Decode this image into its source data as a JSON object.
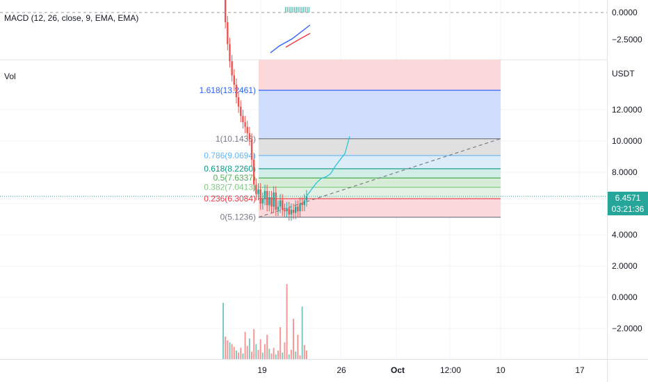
{
  "macd_panel": {
    "label": "MACD (12, 26, close, 9, EMA, EMA)",
    "ticks": [
      "0.0000",
      "−2.5000"
    ],
    "tick_values": [
      0,
      -2.5
    ]
  },
  "vol_panel": {
    "label": "Vol"
  },
  "price_axis": {
    "currency": "USDT",
    "ticks": [
      "12.0000",
      "10.0000",
      "8.0000",
      "6.0000",
      "4.0000",
      "2.0000",
      "0.0000",
      "−2.0000"
    ],
    "tick_values": [
      12,
      10,
      8,
      6,
      4,
      2,
      0,
      -2
    ]
  },
  "current_price": {
    "value": "6.4571",
    "countdown": "03:21:36",
    "color": "#26a69a"
  },
  "time_axis": {
    "ticks": [
      "19",
      "26",
      "Oct",
      "12:00",
      "10",
      "17"
    ]
  },
  "chart_data": {
    "type": "candlestick",
    "price_range": [
      -3,
      15
    ],
    "fibonacci": {
      "low": 5.1236,
      "high": 10.1433,
      "levels": [
        {
          "ratio": 1.618,
          "label": "1.618(13.2461)",
          "price": 13.2461,
          "color": "#2962ff",
          "text_color": "#2962ff",
          "fill": "#d1ddfc"
        },
        {
          "ratio": 1,
          "label": "1(10.1433)",
          "price": 10.1433,
          "color": "#787b86",
          "text_color": "#787b86",
          "fill": "#e0e0e0"
        },
        {
          "ratio": 0.786,
          "label": "0.786(9.0694)",
          "price": 9.0694,
          "color": "#64b5f6",
          "text_color": "#64b5f6",
          "fill": "#dcecf9"
        },
        {
          "ratio": 0.618,
          "label": "0.618(8.2260)",
          "price": 8.226,
          "color": "#089981",
          "text_color": "#089981",
          "fill": "#d2ece7"
        },
        {
          "ratio": 0.5,
          "label": "0.5(7.6337)",
          "price": 7.6337,
          "color": "#4caf50",
          "text_color": "#4caf50",
          "fill": "#d6ecd7"
        },
        {
          "ratio": 0.382,
          "label": "0.382(7.0413)",
          "price": 7.0413,
          "color": "#81c784",
          "text_color": "#81c784",
          "fill": "#e1f0e2"
        },
        {
          "ratio": 0.236,
          "label": "0.236(6.3084)",
          "price": 6.3084,
          "color": "#f23645",
          "text_color": "#f23645",
          "fill": "#fbd8da"
        },
        {
          "ratio": 0,
          "label": "0(5.1236)",
          "price": 5.1236,
          "color": "#787b86",
          "text_color": "#787b86",
          "fill": null
        }
      ]
    },
    "candles_price_path": [
      19.5,
      17.6,
      16.2,
      15.1,
      14.2,
      13.6,
      12.8,
      12.2,
      11.6,
      11.2,
      10.9,
      10.5,
      10.1,
      8.8,
      7.2,
      6.6,
      6.9,
      6.0,
      6.3,
      6.8,
      5.9,
      6.4,
      5.8,
      6.7,
      5.6,
      5.8,
      6.2,
      5.6,
      5.5,
      5.7,
      5.3,
      5.6,
      5.4,
      5.8,
      5.5,
      6.0,
      5.9,
      6.2,
      6.46
    ],
    "projection_path": [
      6.46,
      6.9,
      7.3,
      7.6,
      7.7,
      7.9,
      8.4,
      8.8,
      9.2,
      10.3
    ],
    "trend_line": {
      "from_price": 5.1236,
      "to_price": 10.15
    },
    "volume": [
      6.0,
      2.4,
      2.0,
      1.8,
      1.6,
      1.3,
      0.9,
      0.7,
      1.2,
      0.6,
      2.9,
      1.4,
      2.2,
      0.8,
      3.2,
      1.6,
      1.0,
      2.1,
      0.7,
      1.6,
      2.6,
      1.1,
      0.6,
      1.2,
      0.5,
      0.9,
      3.4,
      0.7,
      1.8,
      8.0,
      0.5,
      1.0,
      4.3,
      0.8,
      2.6,
      0.4,
      5.6,
      1.5,
      0.9
    ]
  },
  "colors": {
    "up": "#26a69a",
    "down": "#ef5350",
    "projection": "#26c6da",
    "macd": "#2962ff",
    "signal": "#f23645"
  }
}
